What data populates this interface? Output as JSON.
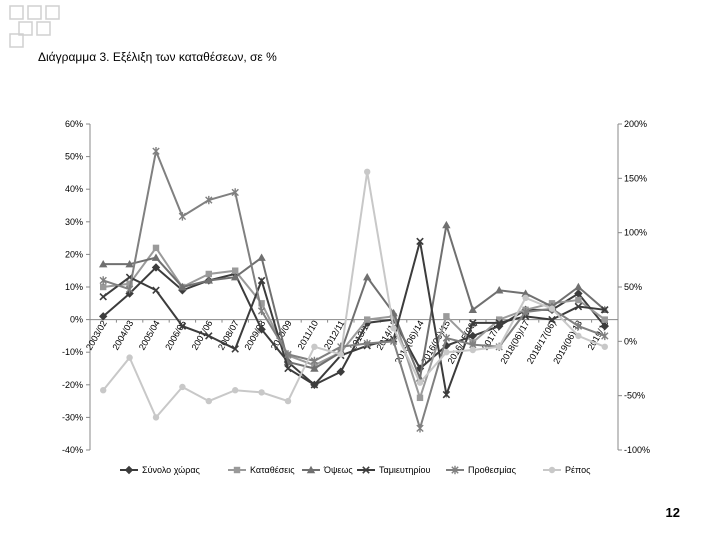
{
  "page": {
    "title": "Διάγραμμα 3. Εξέλιξη των καταθέσεων, σε %",
    "page_number": "12"
  },
  "chart_data": {
    "type": "line",
    "title": "",
    "xlabel": "",
    "ylabel": "",
    "categories": [
      "2003/02",
      "2004/03",
      "2005/04",
      "2006/05",
      "2007/06",
      "2008/07",
      "2009/08",
      "2010/09",
      "2011/10",
      "2012/11",
      "2013/12",
      "2014/13",
      "2015(06)/14",
      "2016(06)/15",
      "2016/15(06)",
      "2017/16",
      "2018(06)/17",
      "2018/17(06)",
      "2019(06)/18",
      "2019/18"
    ],
    "y_left": {
      "min": -40,
      "max": 60,
      "step": 10,
      "ticks": [
        "60%",
        "50%",
        "40%",
        "30%",
        "20%",
        "10%",
        "0%",
        "-10%",
        "-20%",
        "-30%",
        "-40%"
      ]
    },
    "y_right": {
      "min": -100,
      "max": 200,
      "step": 50,
      "ticks": [
        "200%",
        "150%",
        "100%",
        "50%",
        "0%",
        "-50%",
        "-100%"
      ]
    },
    "grid": false,
    "legend_position": "bottom",
    "series": [
      {
        "name": "Σύνολο χώρας",
        "axis": "left",
        "color": "#3c3c3c",
        "marker": "diamond",
        "values": [
          1,
          8,
          16,
          9,
          12,
          14,
          -3,
          -13,
          -20,
          -16,
          -1,
          0,
          -15,
          -8,
          -5,
          -2,
          3,
          3,
          8,
          -2
        ]
      },
      {
        "name": "Καταθέσεις",
        "axis": "left",
        "color": "#9a9a9a",
        "marker": "square",
        "values": [
          10,
          11,
          22,
          10,
          14,
          15,
          5,
          -11,
          -14,
          -10,
          0,
          1,
          -24,
          1,
          -7,
          0,
          3,
          5,
          6,
          0
        ]
      },
      {
        "name": "Όψεως",
        "axis": "left",
        "color": "#707070",
        "marker": "triangle",
        "values": [
          17,
          17,
          19,
          10,
          12,
          13,
          19,
          -13,
          -15,
          -10,
          13,
          2,
          -18,
          29,
          3,
          9,
          8,
          4,
          10,
          3
        ]
      },
      {
        "name": "Ταμιευτηρίου",
        "axis": "left",
        "color": "#3c3c3c",
        "marker": "x",
        "values": [
          7,
          13,
          9,
          -2,
          -5,
          -9,
          12,
          -15,
          -20,
          -11,
          -8,
          -6,
          24,
          -23,
          -1,
          -1,
          1,
          0,
          4,
          3
        ]
      },
      {
        "name": "Προθεσμίας",
        "axis": "right",
        "color": "#808080",
        "marker": "star",
        "values": [
          56,
          48,
          175,
          115,
          130,
          137,
          28,
          -12,
          -18,
          -5,
          -2,
          0,
          -80,
          3,
          -3,
          -5,
          27,
          30,
          14,
          5
        ]
      },
      {
        "name": "Ρέπος",
        "axis": "right",
        "color": "#c8c8c8",
        "marker": "circle",
        "values": [
          -45,
          -15,
          -70,
          -42,
          -55,
          -45,
          -47,
          -55,
          -5,
          -12,
          156,
          12,
          -38,
          -10,
          -8,
          -5,
          40,
          30,
          5,
          -5
        ]
      }
    ]
  }
}
